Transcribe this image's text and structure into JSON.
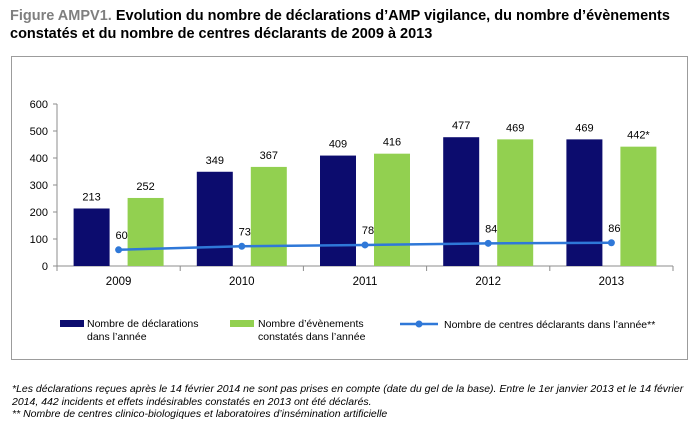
{
  "figure": {
    "prefix": "Figure AMPV1.",
    "title": "Evolution du nombre de déclarations d’AMP vigilance, du nombre d’évènements constatés et du nombre de centres déclarants de 2009 à 2013"
  },
  "colors": {
    "declarations": "#0c0c6e",
    "evenements": "#92d050",
    "centres": "#2f78d8"
  },
  "chart_data": {
    "type": "bar",
    "categories": [
      "2009",
      "2010",
      "2011",
      "2012",
      "2013"
    ],
    "ylim": [
      0,
      600
    ],
    "yticks": [
      0,
      100,
      200,
      300,
      400,
      500,
      600
    ],
    "grid": false,
    "legend": "bottom",
    "series": [
      {
        "name": "Nombre de déclarations dans l’année",
        "type": "bar",
        "values": [
          213,
          349,
          409,
          477,
          469
        ],
        "labels": [
          "213",
          "349",
          "409",
          "477",
          "469"
        ]
      },
      {
        "name": "Nombre d’évènements constatés dans l’année",
        "type": "bar",
        "values": [
          252,
          367,
          416,
          469,
          442
        ],
        "labels": [
          "252",
          "367",
          "416",
          "469",
          "442*"
        ]
      },
      {
        "name": "Nombre de centres déclarants dans l’année**",
        "type": "line",
        "values": [
          60,
          73,
          78,
          84,
          86
        ],
        "labels": [
          "60",
          "73",
          "78",
          "84",
          "86"
        ]
      }
    ]
  },
  "legend": {
    "items": [
      {
        "line1": "Nombre de déclarations",
        "line2": "dans l’année"
      },
      {
        "line1": "Nombre d’évènements",
        "line2": "constatés dans l’année"
      },
      {
        "line1": "Nombre de centres déclarants dans l’année**"
      }
    ]
  },
  "notes": [
    "*Les déclarations reçues après le 14 février 2014 ne sont pas prises en compte (date du gel de la base). Entre le 1er janvier 2013 et le 14 février 2014, 442 incidents et effets indésirables constatés en 2013 ont été déclarés.",
    "** Nombre de centres clinico-biologiques et laboratoires d’insémination artificielle"
  ]
}
